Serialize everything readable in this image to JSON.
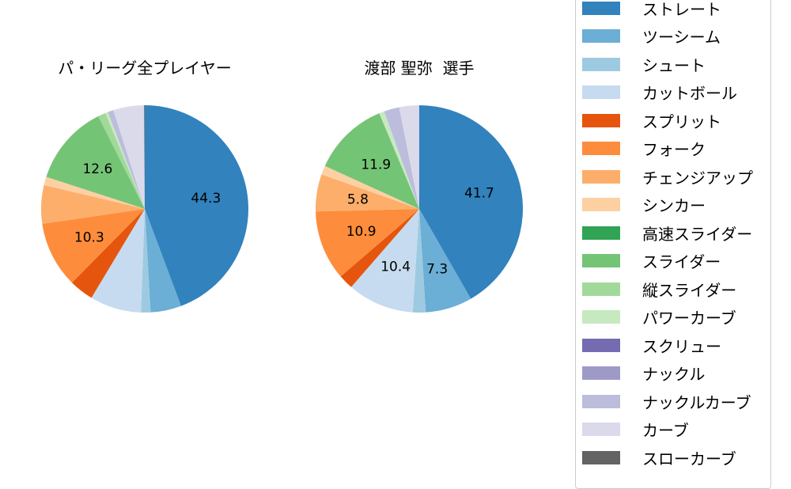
{
  "chart_data": [
    {
      "type": "pie",
      "title": "パ・リーグ全プレイヤー",
      "categories": [
        "ストレート",
        "ツーシーム",
        "シュート",
        "カットボール",
        "スプリット",
        "フォーク",
        "チェンジアップ",
        "シンカー",
        "高速スライダー",
        "スライダー",
        "縦スライダー",
        "パワーカーブ",
        "スクリュー",
        "ナックル",
        "ナックルカーブ",
        "カーブ",
        "スローカーブ"
      ],
      "values": [
        44.3,
        4.8,
        1.5,
        8.0,
        3.8,
        10.3,
        6.0,
        1.3,
        0.0,
        12.6,
        1.2,
        0.4,
        0.0,
        0.0,
        0.9,
        4.8,
        0.1
      ],
      "labels_shown": {
        "ストレート": "44.3",
        "フォーク": "10.3",
        "スライダー": "12.6"
      },
      "startangle": 90,
      "direction": "clockwise"
    },
    {
      "type": "pie",
      "title": "渡部 聖弥  選手",
      "categories": [
        "ストレート",
        "ツーシーム",
        "シュート",
        "カットボール",
        "スプリット",
        "フォーク",
        "チェンジアップ",
        "シンカー",
        "高速スライダー",
        "スライダー",
        "縦スライダー",
        "パワーカーブ",
        "スクリュー",
        "ナックル",
        "ナックルカーブ",
        "カーブ",
        "スローカーブ"
      ],
      "values": [
        41.7,
        7.3,
        2.0,
        10.4,
        2.3,
        10.9,
        5.8,
        1.4,
        0.0,
        11.9,
        0.0,
        0.8,
        0.0,
        0.0,
        2.4,
        3.1,
        0.0
      ],
      "labels_shown": {
        "ストレート": "41.7",
        "ツーシーム": "7.3",
        "カットボール": "10.4",
        "フォーク": "10.9",
        "チェンジアップ": "5.8",
        "スライダー": "11.9"
      },
      "startangle": 90,
      "direction": "clockwise"
    }
  ],
  "legend": {
    "items": [
      {
        "label": "ストレート",
        "color": "#3182bd"
      },
      {
        "label": "ツーシーム",
        "color": "#6baed6"
      },
      {
        "label": "シュート",
        "color": "#9ecae1"
      },
      {
        "label": "カットボール",
        "color": "#c6dbef"
      },
      {
        "label": "スプリット",
        "color": "#e6550d"
      },
      {
        "label": "フォーク",
        "color": "#fd8d3c"
      },
      {
        "label": "チェンジアップ",
        "color": "#fdae6b"
      },
      {
        "label": "シンカー",
        "color": "#fdd0a2"
      },
      {
        "label": "高速スライダー",
        "color": "#31a354"
      },
      {
        "label": "スライダー",
        "color": "#74c476"
      },
      {
        "label": "縦スライダー",
        "color": "#a1d99b"
      },
      {
        "label": "パワーカーブ",
        "color": "#c7e9c0"
      },
      {
        "label": "スクリュー",
        "color": "#756bb1"
      },
      {
        "label": "ナックル",
        "color": "#9e9ac8"
      },
      {
        "label": "ナックルカーブ",
        "color": "#bcbddc"
      },
      {
        "label": "カーブ",
        "color": "#dadaeb"
      },
      {
        "label": "スローカーブ",
        "color": "#636363"
      }
    ]
  },
  "titles": {
    "left": "パ・リーグ全プレイヤー",
    "right": "渡部 聖弥  選手"
  }
}
